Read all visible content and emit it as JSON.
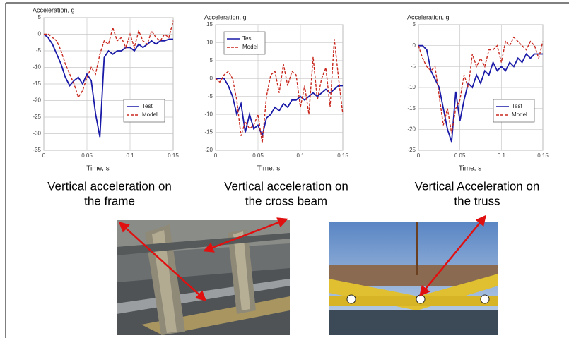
{
  "chart_data": [
    {
      "type": "line",
      "ylabel": "Acceleration, g",
      "xlabel": "Time, s",
      "caption": [
        "Vertical acceleration on",
        "the frame"
      ],
      "x": [
        0,
        0.005,
        0.01,
        0.015,
        0.02,
        0.025,
        0.03,
        0.035,
        0.04,
        0.045,
        0.05,
        0.055,
        0.06,
        0.065,
        0.07,
        0.075,
        0.08,
        0.085,
        0.09,
        0.095,
        0.1,
        0.105,
        0.11,
        0.115,
        0.12,
        0.125,
        0.13,
        0.135,
        0.14,
        0.145,
        0.15
      ],
      "series": [
        {
          "name": "Test",
          "color": "#1a1aa8",
          "linestyle": "solid",
          "values": [
            0,
            -1,
            -3,
            -6,
            -9,
            -13,
            -15.5,
            -14,
            -13,
            -15,
            -12,
            -14,
            -24,
            -31,
            -7,
            -5,
            -6,
            -5,
            -5,
            -4,
            -4,
            -5,
            -3,
            -4,
            -3,
            -2,
            -3,
            -2,
            -2,
            -1.5,
            -1.5
          ]
        },
        {
          "name": "Model",
          "color": "#c8281e",
          "linestyle": "dashed",
          "values": [
            0,
            0,
            -1,
            -2,
            -5,
            -9,
            -12,
            -15,
            -19,
            -17,
            -13,
            -10,
            -12,
            -6,
            -2,
            -3,
            2,
            -2,
            -1,
            -4,
            0,
            -4,
            1,
            -2,
            -3,
            1,
            -1,
            -2,
            0,
            -1,
            4
          ]
        }
      ],
      "xlim": [
        0,
        0.15
      ],
      "xticks": [
        0,
        0.05,
        0.1,
        0.15
      ],
      "ylim": [
        -35,
        5
      ],
      "yticks": [
        5,
        0,
        -5,
        -10,
        -15,
        -20,
        -25,
        -30,
        -35
      ],
      "grid": true,
      "legend": "lower right"
    },
    {
      "type": "line",
      "ylabel": "Acceleration, g",
      "xlabel": "Time, s",
      "caption": [
        "Vertical acceleration on",
        "the cross beam"
      ],
      "x": [
        0,
        0.005,
        0.01,
        0.015,
        0.02,
        0.025,
        0.03,
        0.035,
        0.04,
        0.045,
        0.05,
        0.055,
        0.06,
        0.065,
        0.07,
        0.075,
        0.08,
        0.085,
        0.09,
        0.095,
        0.1,
        0.105,
        0.11,
        0.115,
        0.12,
        0.125,
        0.13,
        0.135,
        0.14,
        0.145,
        0.15
      ],
      "series": [
        {
          "name": "Test",
          "color": "#1a1aa8",
          "linestyle": "solid",
          "values": [
            0,
            0,
            0,
            -2,
            -5,
            -10,
            -7,
            -15,
            -10,
            -14,
            -13,
            -16,
            -11,
            -10,
            -8,
            -9,
            -7,
            -8,
            -6,
            -6,
            -5,
            -6,
            -5,
            -4,
            -5,
            -4,
            -3,
            -4,
            -3,
            -2,
            -2
          ]
        },
        {
          "name": "Model",
          "color": "#c8281e",
          "linestyle": "dashed",
          "values": [
            0,
            -1,
            1,
            2,
            0,
            -6,
            -16,
            -12,
            -14,
            -13,
            -10,
            -18,
            -5,
            1,
            2,
            -4,
            4,
            -2,
            2,
            1,
            -8,
            -2,
            -10,
            6,
            -6,
            0,
            3,
            -8,
            11,
            0,
            -10
          ]
        }
      ],
      "xlim": [
        0,
        0.15
      ],
      "xticks": [
        0,
        0.05,
        0.1,
        0.15
      ],
      "ylim": [
        -20,
        15
      ],
      "yticks": [
        15,
        10,
        5,
        0,
        -5,
        -10,
        -15,
        -20
      ],
      "grid": true,
      "legend": "upper left"
    },
    {
      "type": "line",
      "ylabel": "Acceleration, g",
      "xlabel": "Time, s",
      "caption": [
        "Vertical Acceleration on",
        "the truss"
      ],
      "x": [
        0,
        0.005,
        0.01,
        0.015,
        0.02,
        0.025,
        0.03,
        0.035,
        0.04,
        0.045,
        0.05,
        0.055,
        0.06,
        0.065,
        0.07,
        0.075,
        0.08,
        0.085,
        0.09,
        0.095,
        0.1,
        0.105,
        0.11,
        0.115,
        0.12,
        0.125,
        0.13,
        0.135,
        0.14,
        0.145,
        0.15
      ],
      "series": [
        {
          "name": "Test",
          "color": "#1a1aa8",
          "linestyle": "solid",
          "values": [
            0,
            0,
            -1,
            -6,
            -8,
            -10,
            -15,
            -20,
            -23,
            -11,
            -18,
            -13,
            -9,
            -10,
            -7,
            -9,
            -6,
            -7,
            -4,
            -6,
            -5,
            -6,
            -4,
            -5,
            -3,
            -4,
            -2,
            -3,
            -2,
            -2,
            -2
          ]
        },
        {
          "name": "Model",
          "color": "#c8281e",
          "linestyle": "dashed",
          "values": [
            0,
            -3,
            -5,
            -6,
            -5,
            -12,
            -19,
            -15,
            -21,
            -15,
            -13,
            -7,
            -10,
            -2,
            -5,
            -3,
            -5,
            -1,
            -1,
            0,
            -4,
            1,
            0,
            2,
            1,
            0,
            -1,
            1,
            0,
            -3,
            1
          ]
        }
      ],
      "xlim": [
        0,
        0.15
      ],
      "xticks": [
        0,
        0.05,
        0.1,
        0.15
      ],
      "ylim": [
        -25,
        5
      ],
      "yticks": [
        5,
        0,
        -5,
        -10,
        -15,
        -20,
        -25
      ],
      "grid": true,
      "legend": "lower right"
    }
  ]
}
